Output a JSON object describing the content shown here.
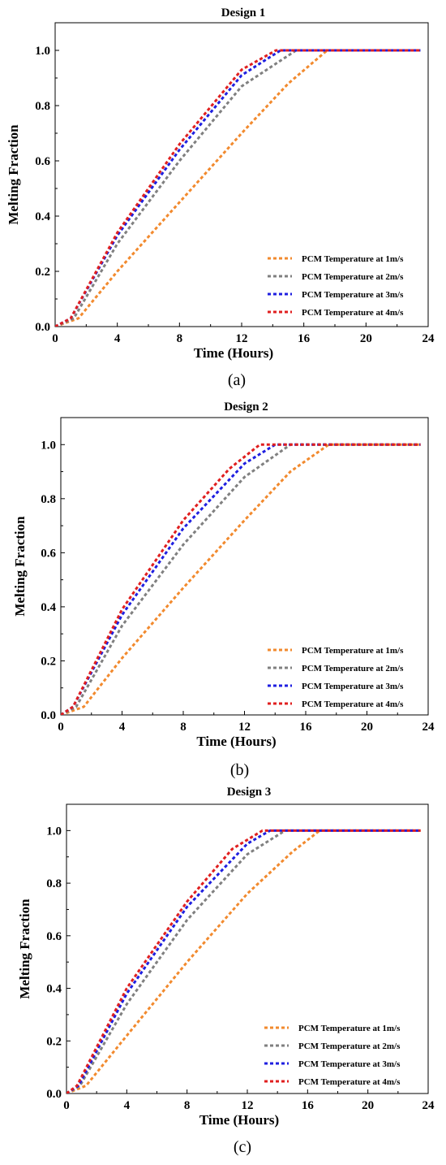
{
  "chart_data": [
    {
      "type": "line",
      "title": "Design 1",
      "xlabel": "Time (Hours)",
      "ylabel": "Melting Fraction",
      "xlim": [
        0,
        24
      ],
      "ylim": [
        0,
        1.1
      ],
      "xticks": [
        "0",
        "4",
        "8",
        "12",
        "16",
        "20",
        "24"
      ],
      "yticks": [
        "0.0",
        "0.2",
        "0.4",
        "0.6",
        "0.8",
        "1.0"
      ],
      "legend": "bottom-right",
      "caption": "(a)",
      "series": [
        {
          "name": "PCM Temperature at 1m/s",
          "color": "#f28a2e",
          "x": [
            0,
            1.5,
            4,
            8,
            12,
            15,
            17.5,
            23.5
          ],
          "y": [
            0,
            0.03,
            0.2,
            0.45,
            0.7,
            0.88,
            1.0,
            1.0
          ]
        },
        {
          "name": "PCM Temperature at 2m/s",
          "color": "#808080",
          "x": [
            0,
            1.2,
            4,
            8,
            12,
            15.5,
            23.5
          ],
          "y": [
            0,
            0.03,
            0.3,
            0.6,
            0.87,
            1.0,
            1.0
          ]
        },
        {
          "name": "PCM Temperature at 3m/s",
          "color": "#1f1fe0",
          "x": [
            0,
            1.0,
            4,
            8,
            12,
            14.5,
            23.5
          ],
          "y": [
            0,
            0.03,
            0.33,
            0.64,
            0.91,
            1.0,
            1.0
          ]
        },
        {
          "name": "PCM Temperature at 4m/s",
          "color": "#e01f1f",
          "x": [
            0,
            1.0,
            4,
            8,
            12,
            14.2,
            23.5
          ],
          "y": [
            0,
            0.03,
            0.34,
            0.66,
            0.93,
            1.0,
            1.0
          ]
        }
      ]
    },
    {
      "type": "line",
      "title": "Design 2",
      "xlabel": "Time (Hours)",
      "ylabel": "Melting Fraction",
      "xlim": [
        0,
        24
      ],
      "ylim": [
        0,
        1.1
      ],
      "xticks": [
        "0",
        "4",
        "8",
        "12",
        "16",
        "20",
        "24"
      ],
      "yticks": [
        "0.0",
        "0.2",
        "0.4",
        "0.6",
        "0.8",
        "1.0"
      ],
      "legend": "bottom-right",
      "caption": "(b)",
      "series": [
        {
          "name": "PCM Temperature at 1m/s",
          "color": "#f28a2e",
          "x": [
            0,
            1.5,
            4,
            8,
            12,
            15,
            17.5,
            23.5
          ],
          "y": [
            0,
            0.03,
            0.21,
            0.47,
            0.72,
            0.9,
            1.0,
            1.0
          ]
        },
        {
          "name": "PCM Temperature at 2m/s",
          "color": "#808080",
          "x": [
            0,
            1.0,
            4,
            8,
            12,
            15,
            23.5
          ],
          "y": [
            0,
            0.03,
            0.33,
            0.63,
            0.88,
            1.0,
            1.0
          ]
        },
        {
          "name": "PCM Temperature at 3m/s",
          "color": "#1f1fe0",
          "x": [
            0,
            0.8,
            4,
            8,
            12,
            14,
            23.5
          ],
          "y": [
            0,
            0.03,
            0.37,
            0.69,
            0.93,
            1.0,
            1.0
          ]
        },
        {
          "name": "PCM Temperature at 4m/s",
          "color": "#e01f1f",
          "x": [
            0,
            0.8,
            4,
            8,
            11,
            13,
            23.5
          ],
          "y": [
            0,
            0.03,
            0.39,
            0.72,
            0.91,
            1.0,
            1.0
          ]
        }
      ]
    },
    {
      "type": "line",
      "title": "Design 3",
      "xlabel": "Time (Hours)",
      "ylabel": "Melting Fraction",
      "xlim": [
        0,
        24
      ],
      "ylim": [
        0,
        1.1
      ],
      "xticks": [
        "0",
        "4",
        "8",
        "12",
        "16",
        "20",
        "24"
      ],
      "yticks": [
        "0.0",
        "0.2",
        "0.4",
        "0.6",
        "0.8",
        "1.0"
      ],
      "legend": "bottom-right",
      "caption": "(c)",
      "series": [
        {
          "name": "PCM Temperature at 1m/s",
          "color": "#f28a2e",
          "x": [
            0,
            1.3,
            4,
            8,
            12,
            15,
            16.8,
            23.5
          ],
          "y": [
            0,
            0.03,
            0.22,
            0.5,
            0.76,
            0.92,
            1.0,
            1.0
          ]
        },
        {
          "name": "PCM Temperature at 2m/s",
          "color": "#808080",
          "x": [
            0,
            0.9,
            4,
            8,
            12,
            14.5,
            23.5
          ],
          "y": [
            0,
            0.03,
            0.34,
            0.66,
            0.91,
            1.0,
            1.0
          ]
        },
        {
          "name": "PCM Temperature at 3m/s",
          "color": "#1f1fe0",
          "x": [
            0,
            0.8,
            4,
            8,
            12,
            13.5,
            23.5
          ],
          "y": [
            0,
            0.03,
            0.38,
            0.71,
            0.95,
            1.0,
            1.0
          ]
        },
        {
          "name": "PCM Temperature at 4m/s",
          "color": "#e01f1f",
          "x": [
            0,
            0.7,
            4,
            8,
            11,
            13,
            23.5
          ],
          "y": [
            0,
            0.03,
            0.4,
            0.73,
            0.93,
            1.0,
            1.0
          ]
        }
      ]
    }
  ]
}
